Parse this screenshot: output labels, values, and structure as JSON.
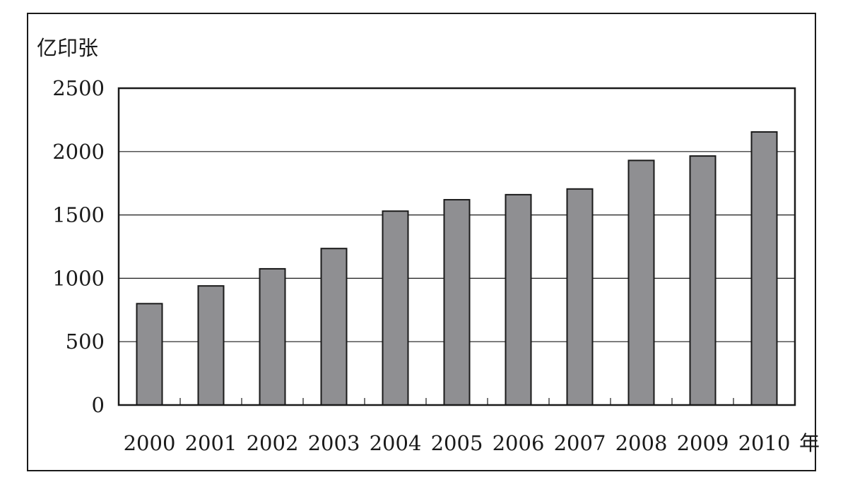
{
  "chart_data": {
    "type": "bar",
    "ylabel": "亿印张",
    "xlabel": "年",
    "categories": [
      "2000",
      "2001",
      "2002",
      "2003",
      "2004",
      "2005",
      "2006",
      "2007",
      "2008",
      "2009",
      "2010"
    ],
    "values": [
      800,
      940,
      1075,
      1235,
      1530,
      1620,
      1660,
      1705,
      1930,
      1965,
      2155
    ],
    "ylim": [
      0,
      2500
    ],
    "yticks": [
      0,
      500,
      1000,
      1500,
      2000,
      2500
    ],
    "grid": true,
    "colors": {
      "bar": "#8f8f92",
      "bar_edge": "#1a1a1a",
      "grid": "#1a1a1a"
    }
  }
}
